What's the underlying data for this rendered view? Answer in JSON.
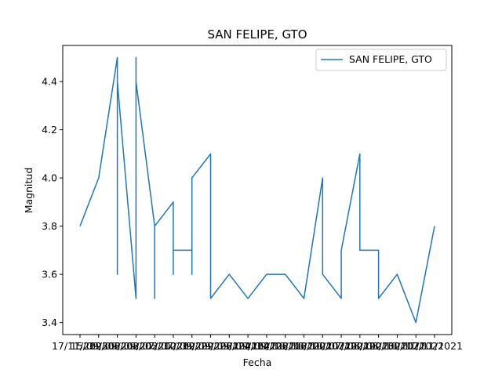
{
  "chart_data": {
    "type": "line",
    "title": "SAN FELIPE, GTO",
    "xlabel": "Fecha",
    "ylabel": "Magnitud",
    "ylim": [
      3.35,
      4.55
    ],
    "yticks": [
      "3.4",
      "3.6",
      "3.8",
      "4.0",
      "4.2",
      "4.4"
    ],
    "xticks": [
      "17/11/2023",
      "15/09/2022",
      "19/09/2022",
      "06/09/2022",
      "08/07/2022",
      "05/07/2022",
      "10/09/2022",
      "19/09/2021",
      "29/09/2021",
      "26/09/2021",
      "24/09/2021",
      "14/10/2021",
      "26/10/2021",
      "16/10/2021",
      "20/07/2021",
      "07/08/2021",
      "20/08/2021",
      "20/10/2021",
      "30/11/2021",
      "17/11/2021"
    ],
    "legend": {
      "position": "upper right",
      "entries": [
        "SAN FELIPE, GTO"
      ]
    },
    "grid": false,
    "color": "#1f77b4",
    "series": [
      {
        "name": "SAN FELIPE, GTO",
        "x": [
          0,
          1,
          2,
          2,
          2,
          2,
          3,
          3,
          3,
          3,
          3,
          3,
          4,
          4,
          4,
          5,
          5,
          5,
          6,
          6,
          6,
          7,
          7,
          7,
          7,
          8,
          9,
          10,
          11,
          12,
          13,
          13,
          14,
          14,
          14,
          15,
          15,
          16,
          16,
          17,
          18,
          19
        ],
        "values": [
          3.8,
          4.0,
          4.5,
          3.6,
          4.5,
          4.4,
          3.5,
          4.5,
          3.6,
          4.5,
          3.5,
          4.4,
          3.8,
          3.5,
          3.8,
          3.9,
          3.6,
          3.7,
          3.7,
          3.6,
          4.0,
          4.1,
          3.5,
          3.8,
          3.5,
          3.6,
          3.5,
          3.6,
          3.6,
          3.5,
          4.0,
          3.6,
          3.5,
          3.7,
          3.7,
          4.1,
          3.7,
          3.7,
          3.5,
          3.6,
          3.4,
          3.8
        ]
      }
    ]
  }
}
